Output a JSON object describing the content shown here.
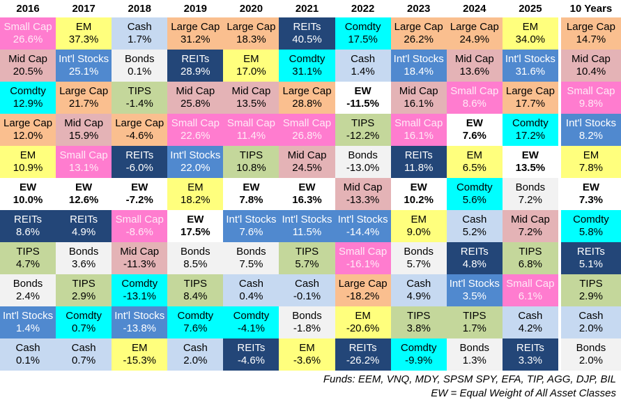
{
  "chart_data": {
    "type": "table",
    "description": "Periodic table of asset class returns by year",
    "columns": [
      "2016",
      "2017",
      "2018",
      "2019",
      "2020",
      "2021",
      "2022",
      "2023",
      "2024",
      "2025",
      "10 Years"
    ],
    "asset_styles": {
      "Small Cap": {
        "bg": "#FF7CCF",
        "fg": "#FFE9F6",
        "bold": false
      },
      "Mid Cap": {
        "bg": "#E4B3B6",
        "fg": "#000000",
        "bold": false
      },
      "Comdty": {
        "bg": "#00FFFF",
        "fg": "#000000",
        "bold": false
      },
      "Large Cap": {
        "bg": "#FABF8F",
        "fg": "#000000",
        "bold": false
      },
      "EM": {
        "bg": "#FFFF7D",
        "fg": "#000000",
        "bold": false
      },
      "EW": {
        "bg": "#FFFFFF",
        "fg": "#000000",
        "bold": true
      },
      "REITs": {
        "bg": "#234678",
        "fg": "#FFFFFF",
        "bold": false
      },
      "TIPS": {
        "bg": "#C4D79B",
        "fg": "#000000",
        "bold": false
      },
      "Bonds": {
        "bg": "#F2F2F2",
        "fg": "#000000",
        "bold": false
      },
      "Int'l Stocks": {
        "bg": "#5089CF",
        "fg": "#FFFFFF",
        "bold": false
      },
      "Cash": {
        "bg": "#C6D9F1",
        "fg": "#000000",
        "bold": false
      }
    },
    "grid": [
      [
        {
          "asset": "Small Cap",
          "value": "26.6%"
        },
        {
          "asset": "Mid Cap",
          "value": "20.5%"
        },
        {
          "asset": "Comdty",
          "value": "12.9%"
        },
        {
          "asset": "Large Cap",
          "value": "12.0%"
        },
        {
          "asset": "EM",
          "value": "10.9%"
        },
        {
          "asset": "EW",
          "value": "10.0%"
        },
        {
          "asset": "REITs",
          "value": "8.6%"
        },
        {
          "asset": "TIPS",
          "value": "4.7%"
        },
        {
          "asset": "Bonds",
          "value": "2.4%"
        },
        {
          "asset": "Int'l Stocks",
          "value": "1.4%"
        },
        {
          "asset": "Cash",
          "value": "0.1%"
        }
      ],
      [
        {
          "asset": "EM",
          "value": "37.3%"
        },
        {
          "asset": "Int'l Stocks",
          "value": "25.1%"
        },
        {
          "asset": "Large Cap",
          "value": "21.7%"
        },
        {
          "asset": "Mid Cap",
          "value": "15.9%"
        },
        {
          "asset": "Small Cap",
          "value": "13.1%"
        },
        {
          "asset": "EW",
          "value": "12.6%"
        },
        {
          "asset": "REITs",
          "value": "4.9%"
        },
        {
          "asset": "Bonds",
          "value": "3.6%"
        },
        {
          "asset": "TIPS",
          "value": "2.9%"
        },
        {
          "asset": "Comdty",
          "value": "0.7%"
        },
        {
          "asset": "Cash",
          "value": "0.7%"
        }
      ],
      [
        {
          "asset": "Cash",
          "value": "1.7%"
        },
        {
          "asset": "Bonds",
          "value": "0.1%"
        },
        {
          "asset": "TIPS",
          "value": "-1.4%"
        },
        {
          "asset": "Large Cap",
          "value": "-4.6%"
        },
        {
          "asset": "REITs",
          "value": "-6.0%"
        },
        {
          "asset": "EW",
          "value": "-7.2%"
        },
        {
          "asset": "Small Cap",
          "value": "-8.6%"
        },
        {
          "asset": "Mid Cap",
          "value": "-11.3%"
        },
        {
          "asset": "Comdty",
          "value": "-13.1%"
        },
        {
          "asset": "Int'l Stocks",
          "value": "-13.8%"
        },
        {
          "asset": "EM",
          "value": "-15.3%"
        }
      ],
      [
        {
          "asset": "Large Cap",
          "value": "31.2%"
        },
        {
          "asset": "REITs",
          "value": "28.9%"
        },
        {
          "asset": "Mid Cap",
          "value": "25.8%"
        },
        {
          "asset": "Small Cap",
          "value": "22.6%"
        },
        {
          "asset": "Int'l Stocks",
          "value": "22.0%"
        },
        {
          "asset": "EM",
          "value": "18.2%"
        },
        {
          "asset": "EW",
          "value": "17.5%"
        },
        {
          "asset": "Bonds",
          "value": "8.5%"
        },
        {
          "asset": "TIPS",
          "value": "8.4%"
        },
        {
          "asset": "Comdty",
          "value": "7.6%"
        },
        {
          "asset": "Cash",
          "value": "2.0%"
        }
      ],
      [
        {
          "asset": "Large Cap",
          "value": "18.3%"
        },
        {
          "asset": "EM",
          "value": "17.0%"
        },
        {
          "asset": "Mid Cap",
          "value": "13.5%"
        },
        {
          "asset": "Small Cap",
          "value": "11.4%"
        },
        {
          "asset": "TIPS",
          "value": "10.8%"
        },
        {
          "asset": "EW",
          "value": "7.8%"
        },
        {
          "asset": "Int'l Stocks",
          "value": "7.6%"
        },
        {
          "asset": "Bonds",
          "value": "7.5%"
        },
        {
          "asset": "Cash",
          "value": "0.4%"
        },
        {
          "asset": "Comdty",
          "value": "-4.1%"
        },
        {
          "asset": "REITs",
          "value": "-4.6%"
        }
      ],
      [
        {
          "asset": "REITs",
          "value": "40.5%"
        },
        {
          "asset": "Comdty",
          "value": "31.1%"
        },
        {
          "asset": "Large Cap",
          "value": "28.8%"
        },
        {
          "asset": "Small Cap",
          "value": "26.8%"
        },
        {
          "asset": "Mid Cap",
          "value": "24.5%"
        },
        {
          "asset": "EW",
          "value": "16.3%"
        },
        {
          "asset": "Int'l Stocks",
          "value": "11.5%"
        },
        {
          "asset": "TIPS",
          "value": "5.7%"
        },
        {
          "asset": "Cash",
          "value": "-0.1%"
        },
        {
          "asset": "Bonds",
          "value": "-1.8%"
        },
        {
          "asset": "EM",
          "value": "-3.6%"
        }
      ],
      [
        {
          "asset": "Comdty",
          "value": "17.5%"
        },
        {
          "asset": "Cash",
          "value": "1.4%"
        },
        {
          "asset": "EW",
          "value": "-11.5%"
        },
        {
          "asset": "TIPS",
          "value": "-12.2%"
        },
        {
          "asset": "Bonds",
          "value": "-13.0%"
        },
        {
          "asset": "Mid Cap",
          "value": "-13.3%"
        },
        {
          "asset": "Int'l Stocks",
          "value": "-14.4%"
        },
        {
          "asset": "Small Cap",
          "value": "-16.1%"
        },
        {
          "asset": "Large Cap",
          "value": "-18.2%"
        },
        {
          "asset": "EM",
          "value": "-20.6%"
        },
        {
          "asset": "REITs",
          "value": "-26.2%"
        }
      ],
      [
        {
          "asset": "Large Cap",
          "value": "26.2%"
        },
        {
          "asset": "Int'l Stocks",
          "value": "18.4%"
        },
        {
          "asset": "Mid Cap",
          "value": "16.1%"
        },
        {
          "asset": "Small Cap",
          "value": "16.1%"
        },
        {
          "asset": "REITs",
          "value": "11.8%"
        },
        {
          "asset": "EW",
          "value": "10.2%"
        },
        {
          "asset": "EM",
          "value": "9.0%"
        },
        {
          "asset": "Bonds",
          "value": "5.7%"
        },
        {
          "asset": "Cash",
          "value": "4.9%"
        },
        {
          "asset": "TIPS",
          "value": "3.8%"
        },
        {
          "asset": "Comdty",
          "value": "-9.9%"
        }
      ],
      [
        {
          "asset": "Large Cap",
          "value": "24.9%"
        },
        {
          "asset": "Mid Cap",
          "value": "13.6%"
        },
        {
          "asset": "Small Cap",
          "value": "8.6%"
        },
        {
          "asset": "EW",
          "value": "7.6%"
        },
        {
          "asset": "EM",
          "value": "6.5%"
        },
        {
          "asset": "Comdty",
          "value": "5.6%"
        },
        {
          "asset": "Cash",
          "value": "5.2%"
        },
        {
          "asset": "REITs",
          "value": "4.8%"
        },
        {
          "asset": "Int'l Stocks",
          "value": "3.5%"
        },
        {
          "asset": "TIPS",
          "value": "1.7%"
        },
        {
          "asset": "Bonds",
          "value": "1.3%"
        }
      ],
      [
        {
          "asset": "EM",
          "value": "34.0%"
        },
        {
          "asset": "Int'l Stocks",
          "value": "31.6%"
        },
        {
          "asset": "Large Cap",
          "value": "17.7%"
        },
        {
          "asset": "Comdty",
          "value": "17.2%"
        },
        {
          "asset": "EW",
          "value": "13.5%"
        },
        {
          "asset": "Bonds",
          "value": "7.2%"
        },
        {
          "asset": "Mid Cap",
          "value": "7.2%"
        },
        {
          "asset": "TIPS",
          "value": "6.8%"
        },
        {
          "asset": "Small Cap",
          "value": "6.1%"
        },
        {
          "asset": "Cash",
          "value": "4.2%"
        },
        {
          "asset": "REITs",
          "value": "3.3%"
        }
      ],
      [
        {
          "asset": "Large Cap",
          "value": "14.7%"
        },
        {
          "asset": "Mid Cap",
          "value": "10.4%"
        },
        {
          "asset": "Small Cap",
          "value": "9.8%"
        },
        {
          "asset": "Int'l Stocks",
          "value": "8.2%"
        },
        {
          "asset": "EM",
          "value": "7.8%"
        },
        {
          "asset": "EW",
          "value": "7.3%"
        },
        {
          "asset": "Comdty",
          "value": "5.8%"
        },
        {
          "asset": "REITs",
          "value": "5.1%"
        },
        {
          "asset": "TIPS",
          "value": "2.9%"
        },
        {
          "asset": "Cash",
          "value": "2.0%"
        },
        {
          "asset": "Bonds",
          "value": "2.0%"
        }
      ]
    ]
  },
  "footer": {
    "line1": "Funds: EEM, VNQ, MDY, SPSM SPY, EFA, TIP, AGG, DJP, BIL",
    "line2": "EW = Equal Weight of All Asset Classes"
  }
}
